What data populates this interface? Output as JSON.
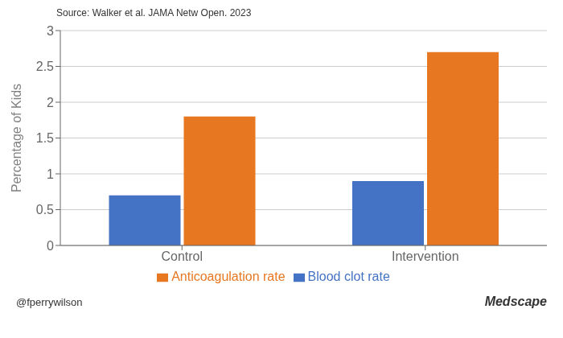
{
  "chart_data": {
    "type": "bar",
    "categories": [
      "Control",
      "Intervention"
    ],
    "series": [
      {
        "name": "Blood clot rate",
        "color": "#4472C4",
        "values": [
          0.7,
          0.9
        ]
      },
      {
        "name": "Anticoagulation rate",
        "color": "#E87722",
        "values": [
          1.8,
          2.7
        ]
      }
    ],
    "ylabel": "Percentage of Kids",
    "ylim": [
      0,
      3
    ],
    "yticks": [
      0,
      0.5,
      1,
      1.5,
      2,
      2.5,
      3
    ],
    "grid": true,
    "legend": "bottom",
    "annotations": [
      "Source: Walker et al. JAMA Netw Open. 2023",
      "@fperrywilson",
      "Medscape"
    ]
  }
}
